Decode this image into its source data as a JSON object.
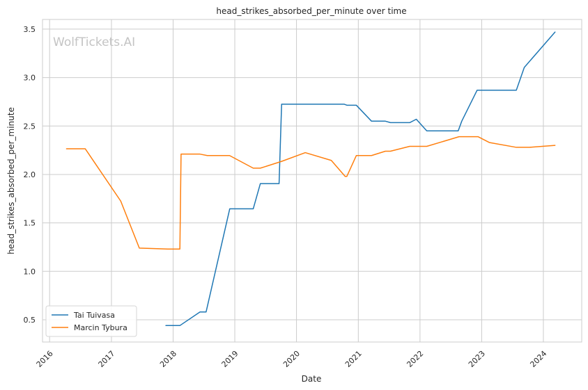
{
  "chart_data": {
    "type": "line",
    "title": "head_strikes_absorbed_per_minute over time",
    "xlabel": "Date",
    "ylabel": "head_strikes_absorbed_per_minute",
    "watermark": "WolfTickets.AI",
    "xlim": [
      "2015-11-20",
      "2024-08-15"
    ],
    "ylim": [
      0.27,
      3.6
    ],
    "x_ticks": [
      "2016",
      "2017",
      "2018",
      "2019",
      "2020",
      "2021",
      "2022",
      "2023",
      "2024"
    ],
    "y_ticks": [
      0.5,
      1.0,
      1.5,
      2.0,
      2.5,
      3.0,
      3.5
    ],
    "grid": true,
    "legend_position": "lower-left",
    "colors": {
      "Tai Tuivasa": "#1f77b4",
      "Marcin Tybura": "#ff7f0e"
    },
    "series": [
      {
        "name": "Tai Tuivasa",
        "points": [
          [
            "2017-11-19",
            0.44
          ],
          [
            "2018-02-10",
            0.44
          ],
          [
            "2018-06-09",
            0.58
          ],
          [
            "2018-07-15",
            0.58
          ],
          [
            "2018-12-02",
            1.645
          ],
          [
            "2019-04-20",
            1.645
          ],
          [
            "2019-06-01",
            1.905
          ],
          [
            "2019-09-20",
            1.905
          ],
          [
            "2019-10-05",
            2.725
          ],
          [
            "2020-10-10",
            2.725
          ],
          [
            "2020-10-25",
            2.715
          ],
          [
            "2020-12-20",
            2.715
          ],
          [
            "2021-03-20",
            2.55
          ],
          [
            "2021-06-10",
            2.55
          ],
          [
            "2021-07-10",
            2.535
          ],
          [
            "2021-11-01",
            2.535
          ],
          [
            "2021-12-10",
            2.57
          ],
          [
            "2022-02-10",
            2.45
          ],
          [
            "2022-08-15",
            2.45
          ],
          [
            "2022-09-05",
            2.55
          ],
          [
            "2022-12-05",
            2.87
          ],
          [
            "2023-07-25",
            2.87
          ],
          [
            "2023-09-10",
            3.105
          ],
          [
            "2024-03-10",
            3.47
          ]
        ]
      },
      {
        "name": "Marcin Tybura",
        "points": [
          [
            "2016-04-10",
            2.265
          ],
          [
            "2016-07-30",
            2.265
          ],
          [
            "2017-02-25",
            1.725
          ],
          [
            "2017-06-15",
            1.24
          ],
          [
            "2017-12-01",
            1.23
          ],
          [
            "2018-02-10",
            1.23
          ],
          [
            "2018-02-17",
            2.21
          ],
          [
            "2018-06-09",
            2.21
          ],
          [
            "2018-07-22",
            2.195
          ],
          [
            "2018-12-01",
            2.195
          ],
          [
            "2019-04-20",
            2.065
          ],
          [
            "2019-06-01",
            2.065
          ],
          [
            "2019-10-05",
            2.135
          ],
          [
            "2020-02-22",
            2.225
          ],
          [
            "2020-07-25",
            2.145
          ],
          [
            "2020-10-15",
            1.98
          ],
          [
            "2020-10-25",
            1.98
          ],
          [
            "2020-12-20",
            2.195
          ],
          [
            "2021-03-20",
            2.195
          ],
          [
            "2021-06-10",
            2.24
          ],
          [
            "2021-07-10",
            2.24
          ],
          [
            "2021-11-01",
            2.29
          ],
          [
            "2022-02-10",
            2.29
          ],
          [
            "2022-08-20",
            2.39
          ],
          [
            "2022-12-10",
            2.39
          ],
          [
            "2023-02-15",
            2.33
          ],
          [
            "2023-07-25",
            2.28
          ],
          [
            "2023-10-10",
            2.28
          ],
          [
            "2024-03-10",
            2.3
          ]
        ]
      }
    ]
  }
}
